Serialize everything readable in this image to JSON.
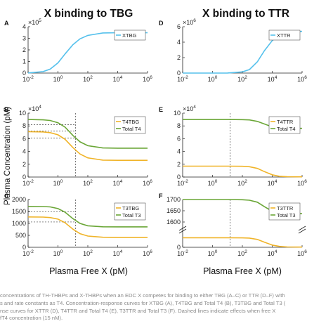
{
  "figure": {
    "y_axis_label": "Plasma Concentration (pM)",
    "x_axis_label": "Plasma Free X (pM)",
    "column_titles": [
      "X binding to TBG",
      "X binding to TTR"
    ]
  },
  "colors": {
    "blue": "#56c1ec",
    "orange": "#f0b429",
    "green": "#6aa636",
    "dashed": "#444444",
    "axis": "#222222"
  },
  "caption_lines": [
    "concentrations of TH-THBPs and X-THBPs when an EDC X competes for binding to either TBG (A–C) or TTR (D–F) with",
    "s and rate constants as T4. Concentration-response curves for XTBG (A), T4TBG and Total T4 (B), T3TBG and Total T3 (",
    "nse curves for XTTR (D), T4TTR and Total T4 (E), T3TTR and Total T3 (F). Dashed lines indicate effects when free X",
    "fT4 concentration (15 nM)."
  ],
  "chart_data": [
    {
      "panel": "A",
      "type": "line",
      "title": "X binding to TBG",
      "xscale": "log",
      "xlim": [
        0.01,
        1000000
      ],
      "x_ticks": [
        "10^-2",
        "10^0",
        "10^2",
        "10^4",
        "10^6"
      ],
      "ylim": [
        0,
        4
      ],
      "y_multiplier": "×10^5",
      "y_ticks": [
        "0",
        "1",
        "2",
        "3",
        "4"
      ],
      "legend_position": "top-right",
      "series": [
        {
          "name": "XTBG",
          "color": "blue",
          "x": [
            0.01,
            0.1,
            0.3,
            1,
            3,
            10,
            30,
            100,
            1000,
            10000,
            100000,
            1000000
          ],
          "y": [
            0.01,
            0.13,
            0.34,
            0.88,
            1.65,
            2.45,
            2.95,
            3.25,
            3.46,
            3.48,
            3.48,
            3.48
          ]
        }
      ]
    },
    {
      "panel": "B",
      "type": "line",
      "xscale": "log",
      "xlim": [
        0.01,
        1000000
      ],
      "x_ticks": [
        "10^-2",
        "10^0",
        "10^2",
        "10^4",
        "10^6"
      ],
      "ylim": [
        0,
        10
      ],
      "y_multiplier": "×10^4",
      "y_ticks": [
        "0",
        "2",
        "4",
        "6",
        "8",
        "10"
      ],
      "legend_position": "top-right",
      "series": [
        {
          "name": "T4TBG",
          "color": "orange",
          "x": [
            0.01,
            0.1,
            0.3,
            1,
            3,
            10,
            30,
            100,
            1000,
            10000,
            100000,
            1000000
          ],
          "y": [
            7.1,
            7.05,
            6.95,
            6.6,
            5.9,
            4.6,
            3.6,
            3.0,
            2.65,
            2.62,
            2.62,
            2.62
          ]
        },
        {
          "name": "Total T4",
          "color": "green",
          "x": [
            0.01,
            0.1,
            0.3,
            1,
            3,
            10,
            30,
            100,
            1000,
            10000,
            100000,
            1000000
          ],
          "y": [
            9.0,
            8.95,
            8.85,
            8.5,
            7.8,
            6.5,
            5.5,
            4.9,
            4.55,
            4.52,
            4.52,
            4.52
          ]
        }
      ],
      "dashed_x": 15,
      "dashed_levels": [
        8.2,
        7.2,
        6.1
      ]
    },
    {
      "panel": "C",
      "type": "line",
      "xscale": "log",
      "xlim": [
        0.01,
        1000000
      ],
      "x_ticks": [
        "10^-2",
        "10^0",
        "10^2",
        "10^4",
        "10^6"
      ],
      "ylim": [
        0,
        2000
      ],
      "y_ticks": [
        "0",
        "500",
        "1000",
        "1500",
        "2000"
      ],
      "legend_position": "top-right",
      "series": [
        {
          "name": "T3TBG",
          "color": "orange",
          "x": [
            0.01,
            0.1,
            0.3,
            1,
            3,
            10,
            30,
            100,
            1000,
            10000,
            100000,
            1000000
          ],
          "y": [
            1270,
            1265,
            1245,
            1180,
            1030,
            760,
            570,
            470,
            420,
            415,
            415,
            415
          ]
        },
        {
          "name": "Total T3",
          "color": "green",
          "x": [
            0.01,
            0.1,
            0.3,
            1,
            3,
            10,
            30,
            100,
            1000,
            10000,
            100000,
            1000000
          ],
          "y": [
            1710,
            1705,
            1690,
            1620,
            1470,
            1200,
            1000,
            900,
            860,
            855,
            855,
            855
          ]
        }
      ],
      "dashed_x": 15,
      "dashed_levels": [
        1480,
        1060
      ]
    },
    {
      "panel": "D",
      "type": "line",
      "title": "X binding to TTR",
      "xscale": "log",
      "xlim": [
        0.01,
        1000000
      ],
      "x_ticks": [
        "10^-2",
        "10^0",
        "10^2",
        "10^4",
        "10^6"
      ],
      "ylim": [
        0,
        6
      ],
      "y_multiplier": "×10^6",
      "y_ticks": [
        "0",
        "2",
        "4",
        "6"
      ],
      "legend_position": "top-right",
      "series": [
        {
          "name": "XTTR",
          "color": "blue",
          "x": [
            0.01,
            1,
            10,
            100,
            300,
            1000,
            3000,
            10000,
            30000,
            100000,
            1000000
          ],
          "y": [
            0,
            0,
            0.01,
            0.15,
            0.45,
            1.45,
            2.9,
            4.2,
            4.9,
            5.25,
            5.4
          ]
        }
      ]
    },
    {
      "panel": "E",
      "type": "line",
      "xscale": "log",
      "xlim": [
        0.01,
        1000000
      ],
      "x_ticks": [
        "10^-2",
        "10^0",
        "10^2",
        "10^4",
        "10^6"
      ],
      "ylim": [
        0,
        10
      ],
      "y_multiplier": "×10^4",
      "y_ticks": [
        "0",
        "2",
        "4",
        "6",
        "8",
        "10"
      ],
      "legend_position": "top-right",
      "series": [
        {
          "name": "T4TTR",
          "color": "orange",
          "x": [
            0.01,
            1,
            10,
            100,
            300,
            1000,
            3000,
            10000,
            30000,
            100000,
            1000000
          ],
          "y": [
            1.7,
            1.7,
            1.7,
            1.68,
            1.62,
            1.35,
            0.85,
            0.35,
            0.12,
            0.05,
            0.03
          ]
        },
        {
          "name": "Total T4",
          "color": "green",
          "x": [
            0.01,
            1,
            10,
            100,
            300,
            1000,
            3000,
            10000,
            30000,
            100000,
            1000000
          ],
          "y": [
            9.0,
            9.0,
            9.0,
            8.98,
            8.93,
            8.7,
            8.3,
            7.85,
            7.7,
            7.65,
            7.62
          ]
        }
      ],
      "dashed_x": 15
    },
    {
      "panel": "F",
      "type": "line",
      "xscale": "log",
      "xlim": [
        0.01,
        1000000
      ],
      "x_ticks": [
        "10^-2",
        "10^0",
        "10^2",
        "10^4",
        "10^6"
      ],
      "y_ticks": [
        "1700",
        "1650",
        "1600",
        "0"
      ],
      "y_axis_break": true,
      "legend_position": "top-right",
      "series": [
        {
          "name": "T3TTR",
          "color": "orange",
          "x": [
            0.01,
            1,
            10,
            100,
            300,
            1000,
            3000,
            10000,
            30000,
            100000,
            1000000
          ],
          "y": [
            85,
            85,
            85,
            84,
            82,
            70,
            45,
            20,
            8,
            3,
            2
          ]
        },
        {
          "name": "Total T3",
          "color": "green",
          "x": [
            0.01,
            1,
            10,
            100,
            300,
            1000,
            3000,
            10000,
            30000,
            100000,
            1000000
          ],
          "y": [
            1700,
            1700,
            1700,
            1699,
            1697,
            1688,
            1668,
            1648,
            1640,
            1638,
            1637
          ]
        }
      ],
      "dashed_x": 15
    }
  ]
}
